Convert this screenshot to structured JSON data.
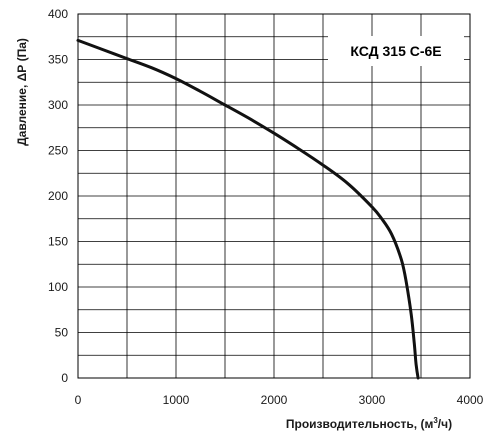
{
  "chart_data": {
    "type": "line",
    "title": "",
    "model_label": "КСД 315 С-6Е",
    "xlabel_main": "Производительность, (м",
    "xlabel_sup": "3",
    "xlabel_tail": "/ч)",
    "ylabel": "Давление, ΔР (Па)",
    "xlim": [
      0,
      4000
    ],
    "ylim": [
      0,
      400
    ],
    "x_ticks": [
      0,
      1000,
      2000,
      3000,
      4000
    ],
    "y_ticks": [
      0,
      50,
      100,
      150,
      200,
      250,
      300,
      350,
      400
    ],
    "grid": true,
    "series": [
      {
        "x": [
          0,
          250,
          500,
          750,
          1000,
          1250,
          1500,
          1750,
          2000,
          2250,
          2500,
          2750,
          3000,
          3100,
          3200,
          3300,
          3350,
          3400,
          3430,
          3450,
          3470
        ],
        "y": [
          371,
          361,
          351,
          341,
          329,
          315,
          300,
          285,
          269,
          252,
          234,
          214,
          188,
          175,
          158,
          130,
          105,
          70,
          40,
          15,
          0
        ]
      }
    ]
  }
}
